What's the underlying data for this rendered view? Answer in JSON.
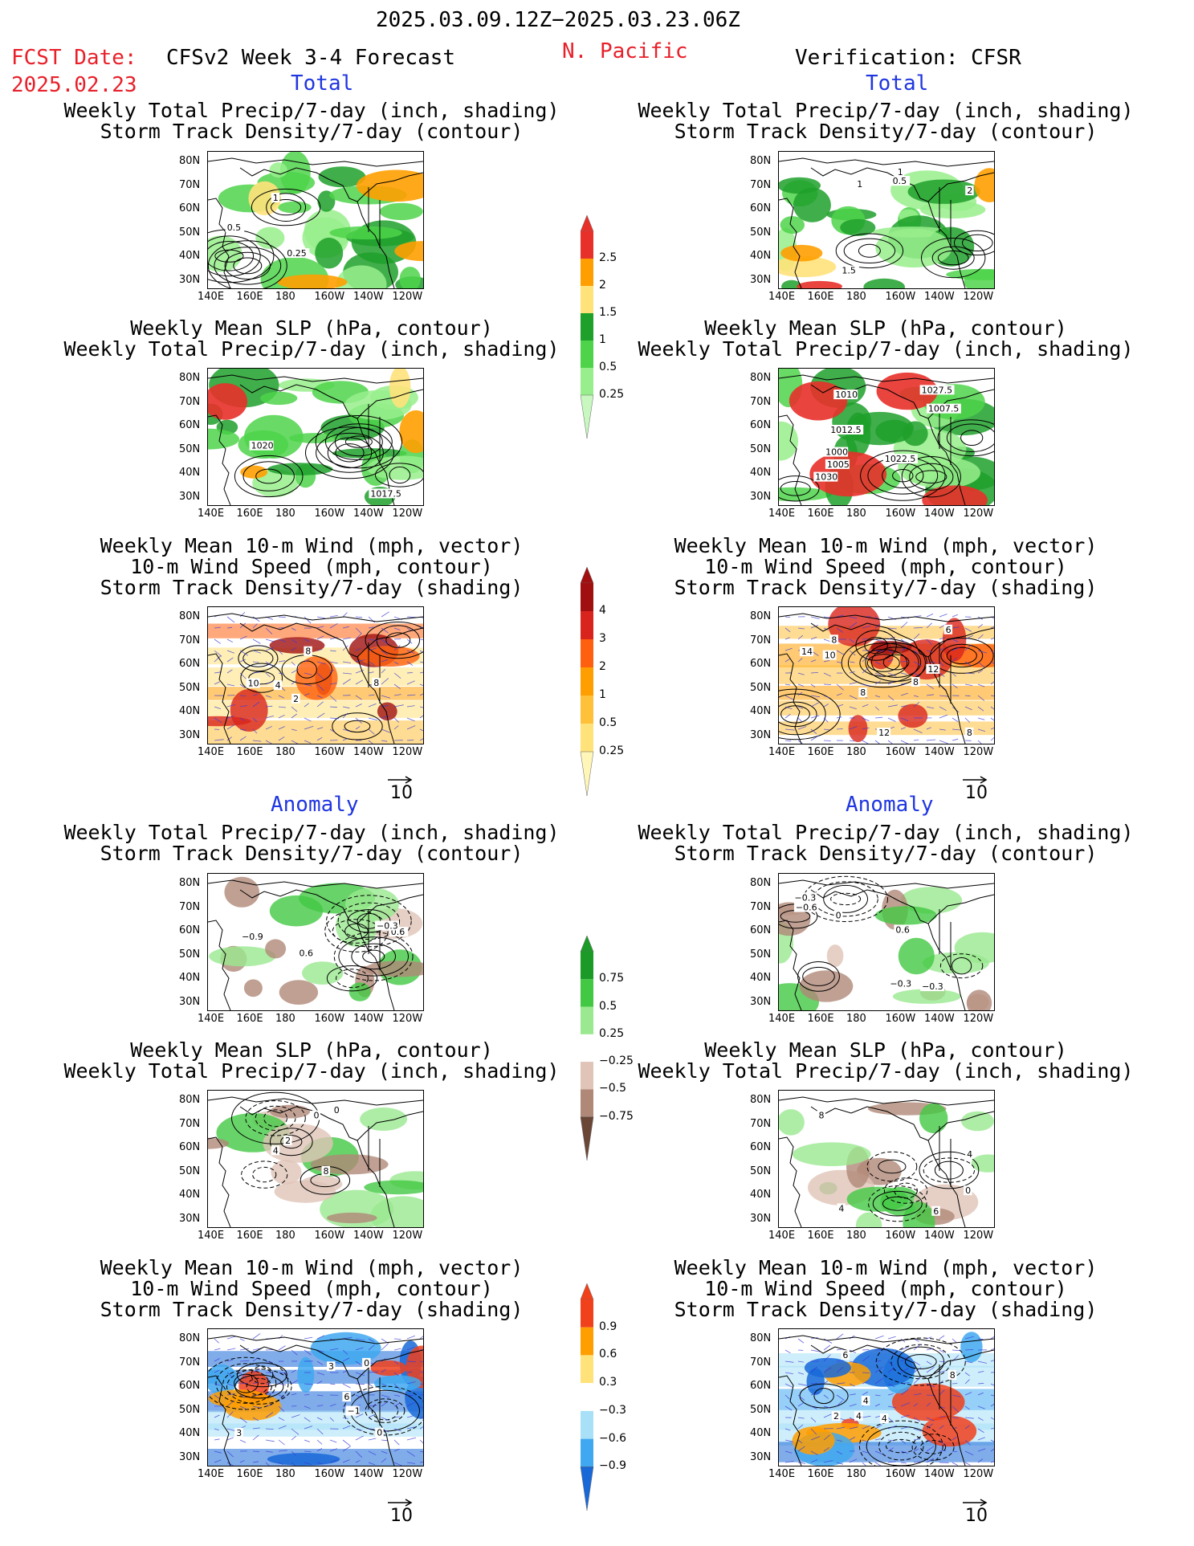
{
  "header": {
    "date_range": "2025.03.09.12Z−2025.03.23.06Z",
    "fcst_label": "FCST Date:",
    "fcst_date": "2025.02.23",
    "model": "CFSv2 Week 3-4 Forecast",
    "region": "N. Pacific",
    "verification": "Verification: CFSR"
  },
  "sections": {
    "total": "Total",
    "anomaly": "Anomaly"
  },
  "titles": {
    "precip_storm": [
      "Weekly Total Precip/7-day (inch, shading)",
      "Storm Track Density/7-day (contour)"
    ],
    "slp_precip": [
      "Weekly Mean SLP (hPa, contour)",
      "Weekly Total Precip/7-day (inch, shading)"
    ],
    "wind_storm": [
      "Weekly Mean 10-m Wind (mph, vector)",
      "10-m Wind Speed (mph, contour)",
      "Storm Track Density/7-day (shading)"
    ]
  },
  "axes": {
    "lat": [
      "80N",
      "70N",
      "60N",
      "50N",
      "40N",
      "30N"
    ],
    "lon": [
      "140E",
      "160E",
      "180",
      "160W",
      "140W",
      "120W"
    ]
  },
  "vector_ref": "10",
  "colorbars": {
    "precip_total": {
      "levels": [
        "2.5",
        "2",
        "1.5",
        "1",
        "0.5",
        "0.25"
      ],
      "colors": [
        "#e8302a",
        "#ff9e00",
        "#ffe27a",
        "#1fa02a",
        "#4ed34a",
        "#98ee8c",
        "#c8f8c0"
      ]
    },
    "storm_total": {
      "levels": [
        "4",
        "3",
        "2",
        "1",
        "0.5",
        "0.25"
      ],
      "colors": [
        "#a01010",
        "#d8241c",
        "#ff6010",
        "#ff9e00",
        "#ffc03a",
        "#ffe27a",
        "#fff6b8"
      ]
    },
    "precip_anom": {
      "levels": [
        "0.75",
        "0.5",
        "0.25",
        "−0.25",
        "−0.5",
        "−0.75"
      ],
      "colors": [
        "#1c9a28",
        "#42c842",
        "#9ae890",
        "#ffffff",
        "#e0c4b8",
        "#b08878",
        "#6a4636"
      ]
    },
    "storm_anom": {
      "levels": [
        "0.9",
        "0.6",
        "0.3",
        "−0.3",
        "−0.6",
        "−0.9"
      ],
      "colors": [
        "#f0401c",
        "#ff9e00",
        "#ffe27a",
        "#ffffff",
        "#a8e0f8",
        "#40a8f0",
        "#1868d8"
      ]
    }
  },
  "panel_labels": {
    "l1": [
      "1",
      "0.5",
      "0.25"
    ],
    "r1": [
      "0.5",
      "1",
      "2",
      "1",
      "1.5"
    ],
    "l2": [
      "1017.5",
      "1020"
    ],
    "r2": [
      "1030",
      "1027.5",
      "1010",
      "1007.5",
      "1022.5",
      "1012.5",
      "1000",
      "1005"
    ],
    "l3": [
      "2",
      "4",
      "8",
      "8",
      "10"
    ],
    "r3": [
      "8",
      "6",
      "12",
      "10",
      "12",
      "8",
      "8",
      "8",
      "14"
    ],
    "l4": [
      "0.6",
      "0.6",
      "−0.9",
      "−0.3"
    ],
    "r4": [
      "0",
      "−0.3",
      "−0.3",
      "0.6",
      "−0.6",
      "−0.3"
    ],
    "l5": [
      "0",
      "8",
      "2",
      "4",
      "0"
    ],
    "r5": [
      "6",
      "8",
      "0",
      "4",
      "4"
    ],
    "l6": [
      "3",
      "−1",
      "3",
      "6",
      "0",
      "0"
    ],
    "r6": [
      "4",
      "6",
      "2",
      "4",
      "4",
      "8"
    ]
  }
}
